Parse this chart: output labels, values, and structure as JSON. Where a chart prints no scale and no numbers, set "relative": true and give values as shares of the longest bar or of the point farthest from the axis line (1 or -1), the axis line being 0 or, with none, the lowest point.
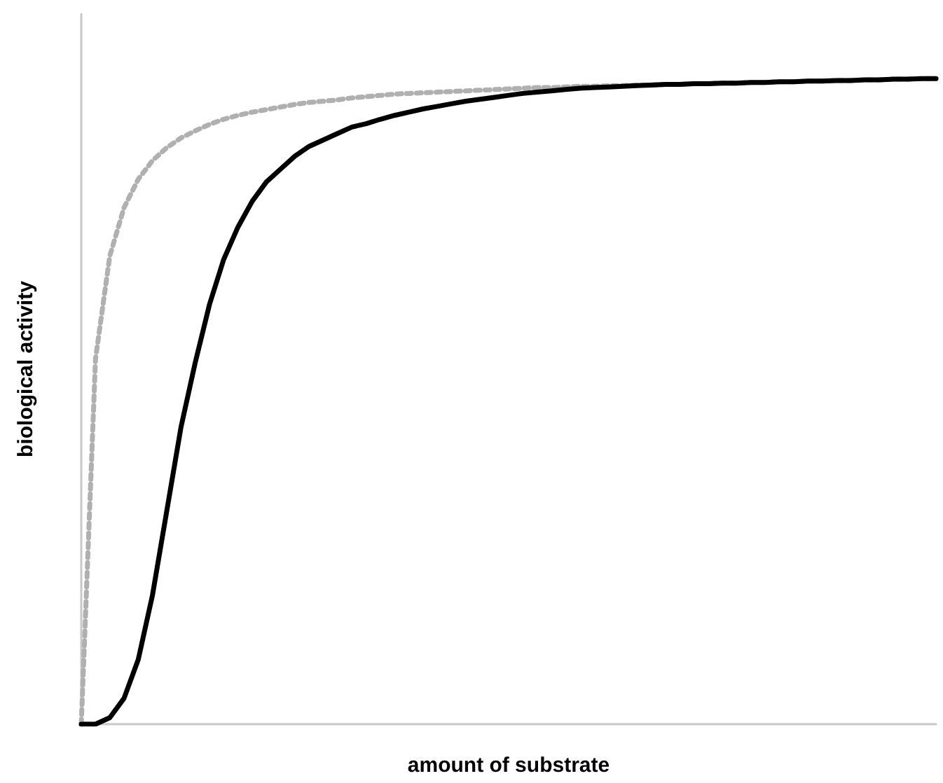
{
  "chart_data": {
    "type": "line",
    "relative": true,
    "xlabel": "amount of substrate",
    "ylabel": "biological activity",
    "categories": [
      null,
      null,
      null,
      null,
      null,
      null,
      null,
      null,
      null,
      null,
      null,
      null,
      null,
      null,
      null,
      null,
      null,
      null,
      null,
      null,
      null,
      null,
      null,
      null,
      null,
      null,
      null,
      null,
      null,
      null,
      null,
      null,
      null,
      null,
      null,
      null,
      null,
      null,
      null,
      null,
      null,
      null,
      null,
      null,
      null,
      null,
      null,
      null,
      null,
      null,
      null,
      null,
      null,
      null,
      null,
      null,
      null,
      null,
      null,
      null,
      null
    ],
    "series": [
      {
        "color": "#b0b0b0",
        "line_style": "dotted",
        "values": [
          0,
          0.566,
          0.725,
          0.8,
          0.844,
          0.873,
          0.893,
          0.908,
          0.919,
          0.929,
          0.937,
          0.943,
          0.948,
          0.952,
          0.956,
          0.96,
          0.963,
          0.965,
          0.967,
          0.97,
          0.972,
          0.974,
          0.976,
          0.977,
          0.978,
          0.979,
          0.98,
          0.981,
          0.982,
          0.983,
          0.984,
          0.985,
          0.986,
          0.986,
          0.987,
          0.988,
          0.988,
          0.989,
          0.989,
          0.99,
          0.99,
          0.991,
          0.991,
          0.992,
          0.992,
          0.993,
          0.993,
          0.994,
          0.994,
          0.995,
          0.995,
          0.996,
          0.996,
          0.997,
          0.997,
          0.998,
          0.998,
          0.999,
          0.999,
          1,
          1
        ]
      },
      {
        "color": "#000000",
        "line_style": "solid",
        "values": [
          0,
          0,
          0.01,
          0.04,
          0.1,
          0.2,
          0.33,
          0.46,
          0.56,
          0.65,
          0.72,
          0.77,
          0.81,
          0.84,
          0.86,
          0.88,
          0.895,
          0.905,
          0.915,
          0.925,
          0.93,
          0.937,
          0.943,
          0.948,
          0.953,
          0.957,
          0.961,
          0.965,
          0.968,
          0.971,
          0.974,
          0.977,
          0.979,
          0.981,
          0.983,
          0.985,
          0.986,
          0.987,
          0.988,
          0.989,
          0.99,
          0.991,
          0.991,
          0.992,
          0.992,
          0.993,
          0.993,
          0.994,
          0.994,
          0.995,
          0.995,
          0.996,
          0.996,
          0.997,
          0.997,
          0.998,
          0.998,
          0.999,
          0.999,
          1,
          1
        ]
      }
    ],
    "marker": "none"
  }
}
